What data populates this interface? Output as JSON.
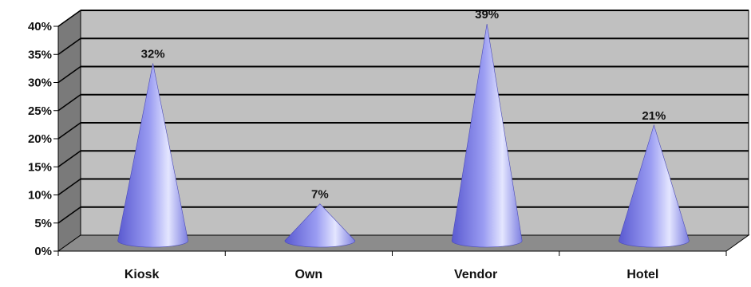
{
  "chart_data": {
    "type": "bar",
    "subtype": "3d-cone",
    "title": "",
    "xlabel": "",
    "ylabel": "",
    "categories": [
      "Kiosk",
      "Own",
      "Vendor",
      "Hotel"
    ],
    "values": [
      32,
      7,
      39,
      21
    ],
    "data_labels": [
      "32%",
      "7%",
      "39%",
      "21%"
    ],
    "ylim": [
      0,
      40
    ],
    "y_ticks": [
      0,
      5,
      10,
      15,
      20,
      25,
      30,
      35,
      40
    ],
    "y_tick_labels": [
      "0%",
      "5%",
      "10%",
      "15%",
      "20%",
      "25%",
      "30%",
      "35%",
      "40%"
    ],
    "grid": true,
    "legend": "none",
    "colors": {
      "cone_dark": "#5a5ad0",
      "cone_mid": "#9a9cf2",
      "cone_light": "#e4e6ff",
      "wall": "#c0c0c0",
      "floor": "#8c8c8c",
      "side_wall": "#7a7a7a",
      "gridline": "#000000"
    }
  }
}
